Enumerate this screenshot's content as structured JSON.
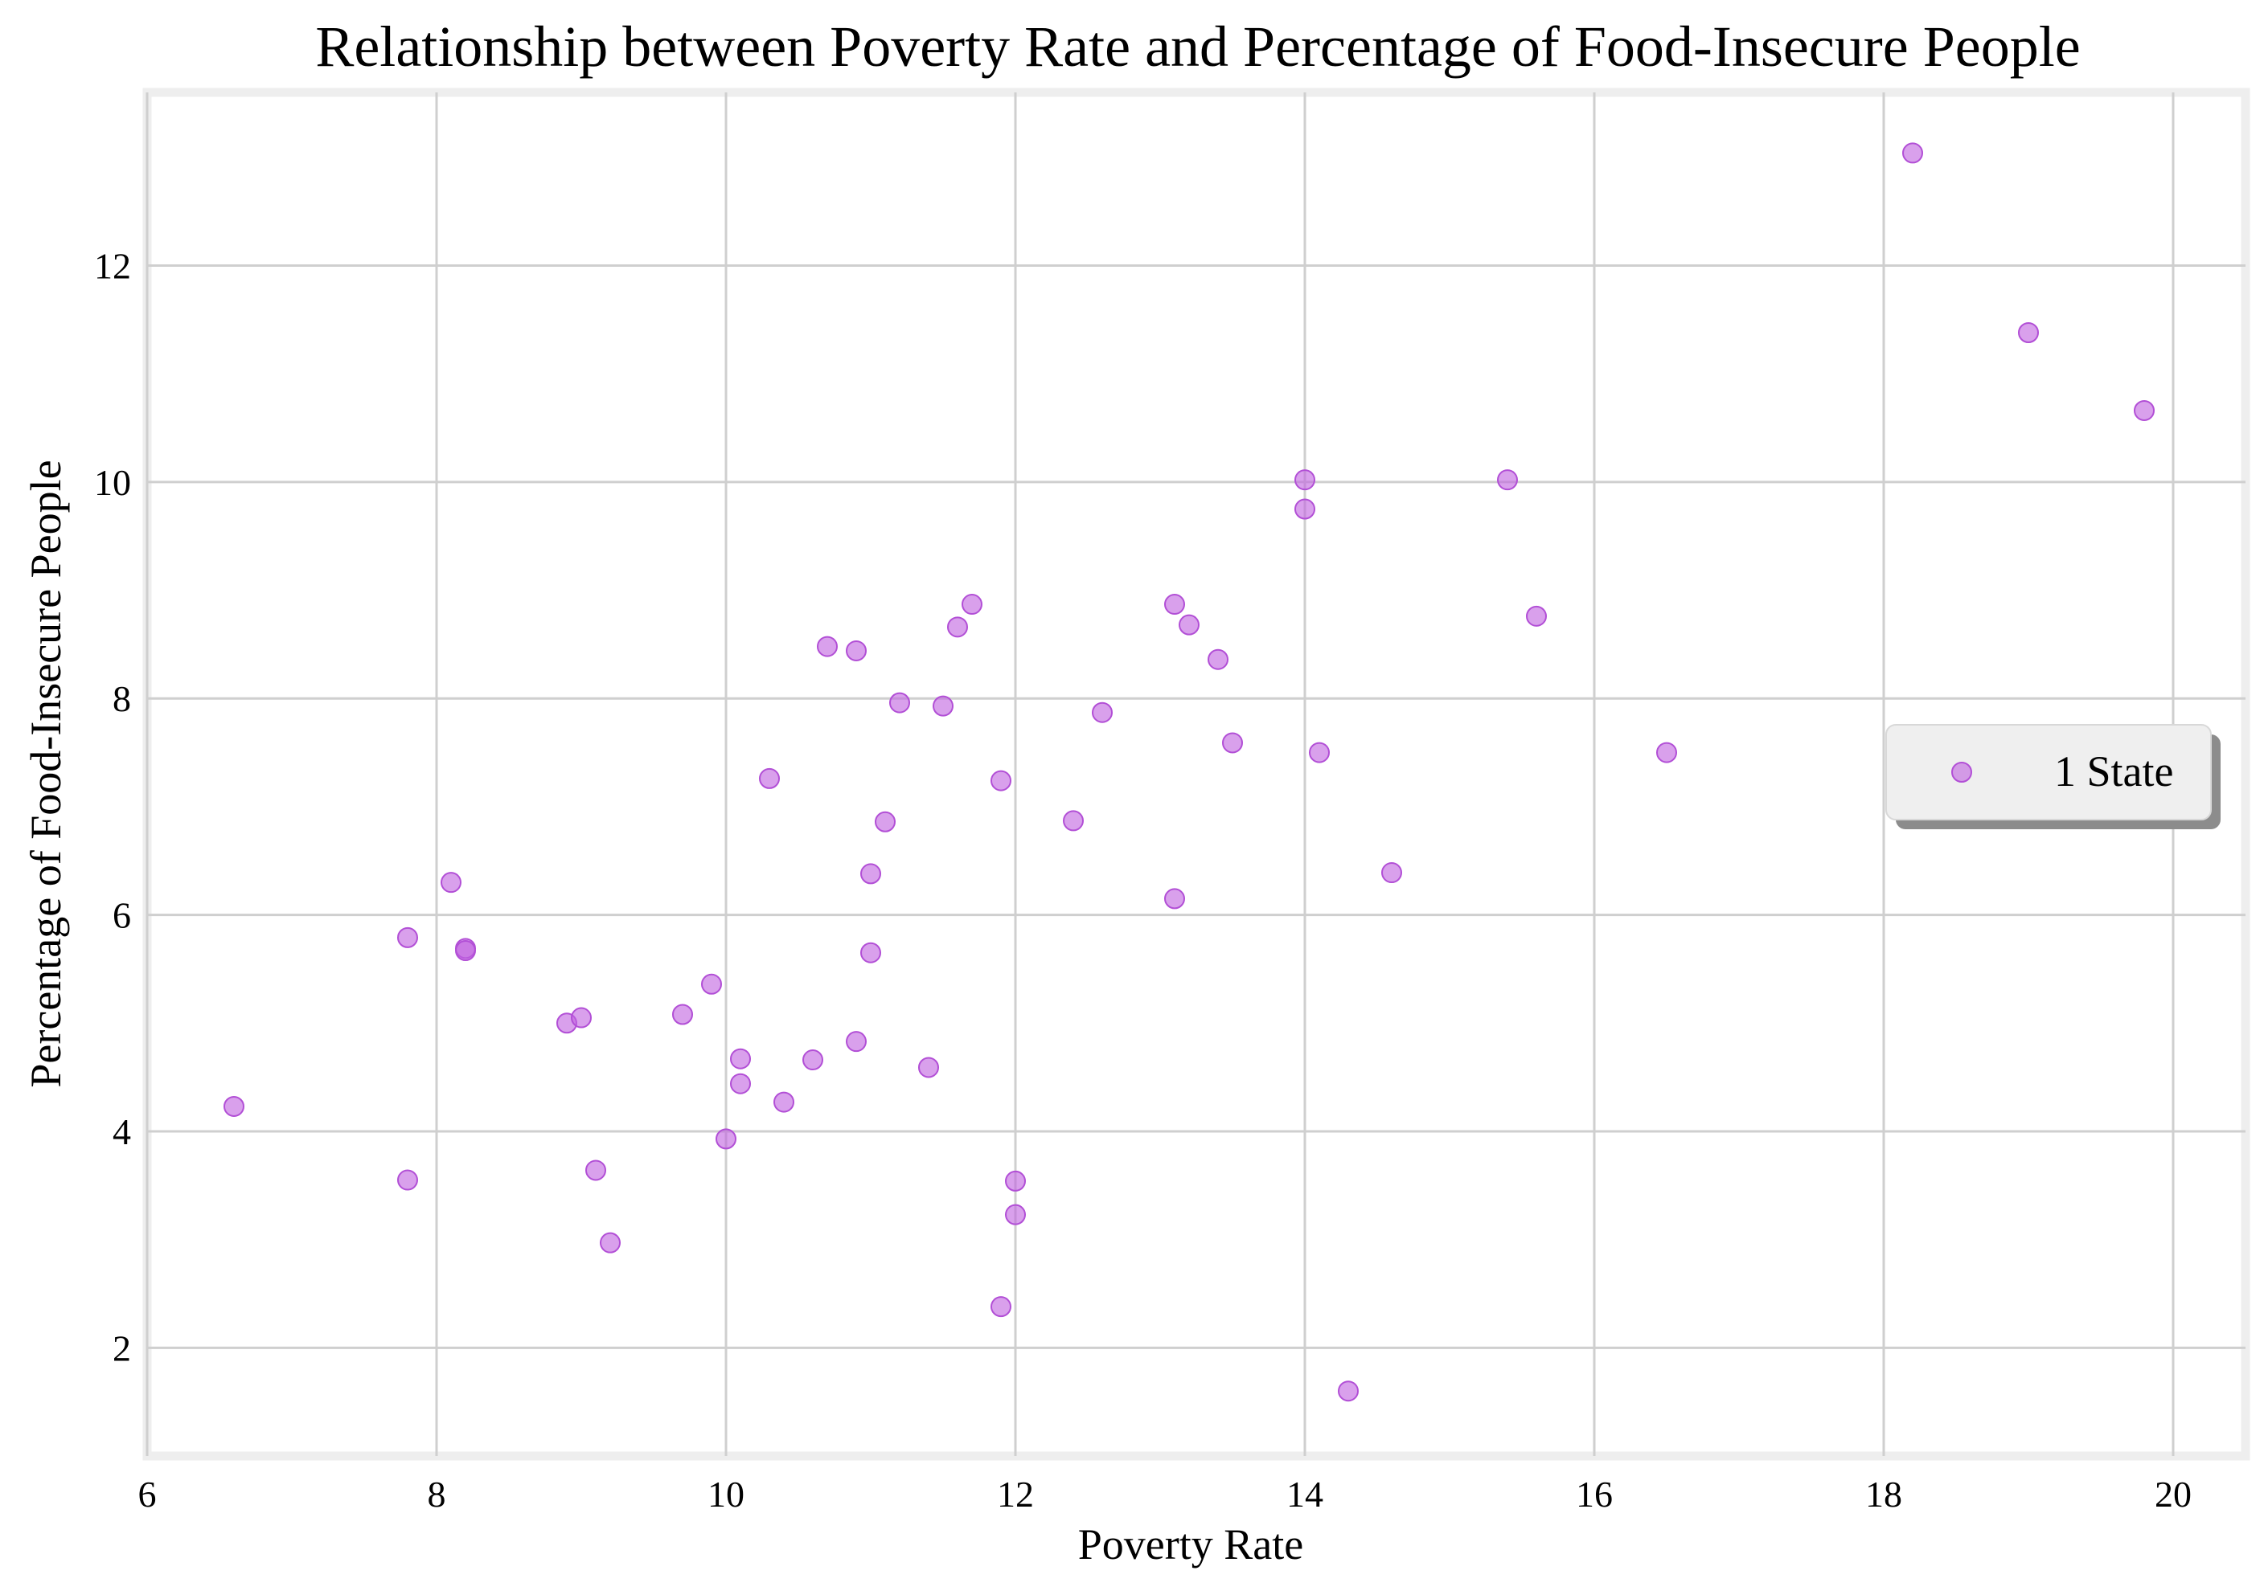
{
  "chart_data": {
    "type": "scatter",
    "title": "Relationship between Poverty Rate and Percentage of Food-Insecure People",
    "xlabel": "Poverty Rate",
    "ylabel": "Percentage of Food-Insecure People",
    "xlim": [
      6,
      20.5
    ],
    "ylim": [
      1,
      13.6
    ],
    "xticks": [
      6,
      8,
      10,
      12,
      14,
      16,
      18,
      20
    ],
    "yticks": [
      2,
      4,
      6,
      8,
      10,
      12
    ],
    "grid": true,
    "legend_position": "center-right",
    "colors": {
      "point": "#c061e0",
      "grid": "#cfcfcf",
      "frame": "#eeeeee",
      "legend_bg": "#efefef",
      "legend_shadow": "#8c8c8c"
    },
    "series": [
      {
        "name": "1 State",
        "points": [
          [
            6.6,
            4.23
          ],
          [
            7.8,
            5.79
          ],
          [
            7.8,
            3.55
          ],
          [
            8.1,
            6.3
          ],
          [
            8.2,
            5.69
          ],
          [
            8.2,
            5.67
          ],
          [
            8.9,
            5.0
          ],
          [
            9.0,
            5.05
          ],
          [
            9.1,
            3.64
          ],
          [
            9.2,
            2.97
          ],
          [
            9.7,
            5.08
          ],
          [
            9.9,
            5.36
          ],
          [
            10.0,
            3.93
          ],
          [
            10.1,
            4.67
          ],
          [
            10.1,
            4.44
          ],
          [
            10.3,
            7.26
          ],
          [
            10.4,
            4.27
          ],
          [
            10.6,
            4.66
          ],
          [
            10.7,
            8.48
          ],
          [
            10.9,
            8.44
          ],
          [
            10.9,
            4.83
          ],
          [
            11.0,
            6.38
          ],
          [
            11.0,
            5.65
          ],
          [
            11.1,
            6.86
          ],
          [
            11.2,
            7.96
          ],
          [
            11.4,
            4.59
          ],
          [
            11.5,
            7.93
          ],
          [
            11.6,
            8.66
          ],
          [
            11.7,
            8.87
          ],
          [
            11.9,
            7.24
          ],
          [
            11.9,
            2.38
          ],
          [
            12.0,
            3.54
          ],
          [
            12.0,
            3.23
          ],
          [
            12.4,
            6.87
          ],
          [
            12.6,
            7.87
          ],
          [
            13.1,
            8.87
          ],
          [
            13.1,
            6.15
          ],
          [
            13.2,
            8.68
          ],
          [
            13.4,
            8.36
          ],
          [
            13.5,
            7.59
          ],
          [
            14.0,
            10.02
          ],
          [
            14.0,
            9.75
          ],
          [
            14.1,
            7.5
          ],
          [
            14.3,
            1.6
          ],
          [
            14.6,
            6.39
          ],
          [
            15.4,
            10.02
          ],
          [
            15.6,
            8.76
          ],
          [
            16.5,
            7.5
          ],
          [
            18.2,
            13.04
          ],
          [
            19.0,
            11.38
          ],
          [
            19.8,
            10.66
          ]
        ]
      }
    ]
  }
}
